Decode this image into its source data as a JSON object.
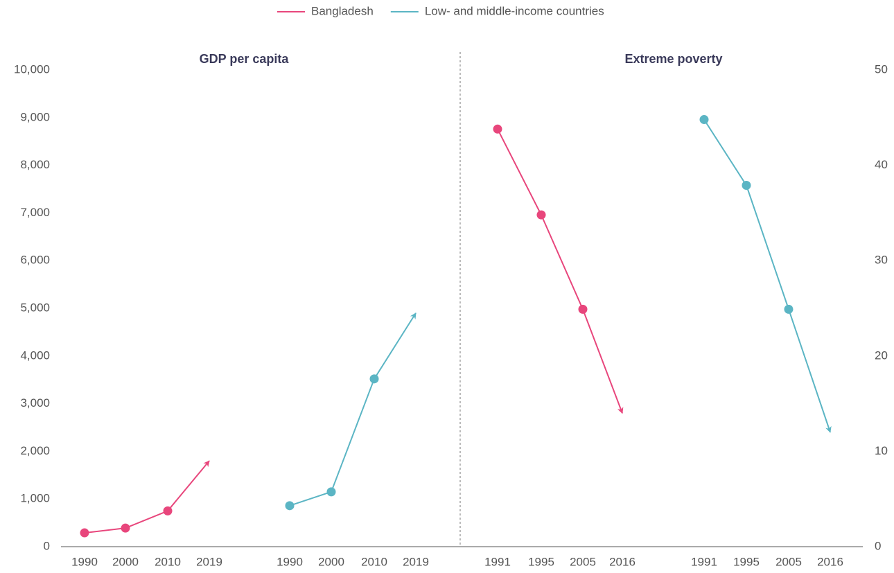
{
  "chart_data": [
    {
      "type": "line",
      "title": "GDP per capita",
      "x": [
        1990,
        2000,
        2010,
        2019
      ],
      "series": [
        {
          "name": "Bangladesh",
          "color": "#e8467c",
          "values": [
            290,
            390,
            750,
            1800
          ]
        },
        {
          "name": "Low- and middle-income countries",
          "color": "#5bb5c4",
          "values": [
            860,
            1150,
            3520,
            4900
          ]
        }
      ],
      "ylim": [
        0,
        10000
      ],
      "yticks": [
        0,
        {
          "value": 1000,
          "label": "1,000"
        },
        {
          "value": 2000,
          "label": "2,000"
        },
        {
          "value": 3000,
          "label": "3,000"
        },
        {
          "value": 4000,
          "label": "4,000"
        },
        {
          "value": 5000,
          "label": "5,000"
        },
        {
          "value": 6000,
          "label": "6,000"
        },
        {
          "value": 7000,
          "label": "7,000"
        },
        {
          "value": 8000,
          "label": "8,000"
        },
        {
          "value": 9000,
          "label": "9,000"
        },
        {
          "value": 10000,
          "label": "10,000"
        }
      ],
      "legend": "top"
    },
    {
      "type": "line",
      "title": "Extreme poverty",
      "x": [
        1991,
        1995,
        2005,
        2016
      ],
      "series": [
        {
          "color": "#e8467c",
          "values": [
            43.8,
            34.8,
            24.9,
            14.0
          ],
          "axis": "y2"
        },
        {
          "color": "#5bb5c4",
          "values": [
            44.8,
            37.9,
            24.9,
            12.0
          ],
          "axis": "y2"
        }
      ],
      "y2lim": [
        0,
        50
      ],
      "y2ticks": [
        0,
        10,
        20,
        30,
        40,
        50
      ]
    }
  ]
}
